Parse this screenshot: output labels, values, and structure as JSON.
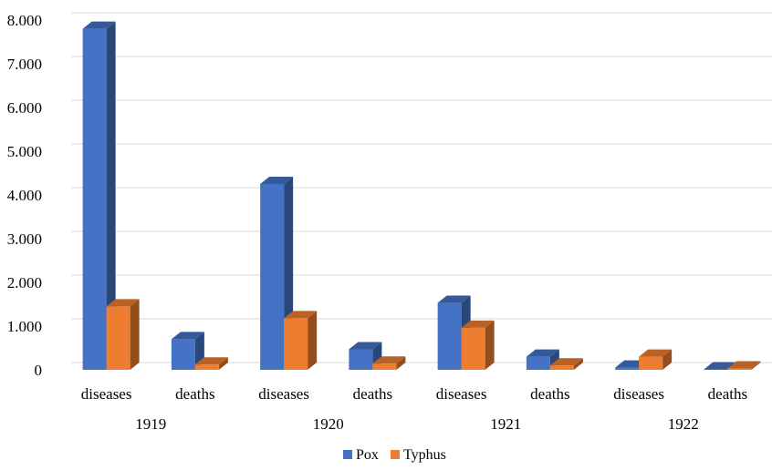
{
  "chart_data": {
    "type": "bar",
    "style": "3d-clustered-column",
    "groups": [
      "1919",
      "1920",
      "1921",
      "1922"
    ],
    "subcategories": [
      "diseases",
      "deaths"
    ],
    "categories": [
      "1919 diseases",
      "1919 deaths",
      "1920 diseases",
      "1920 deaths",
      "1921 diseases",
      "1921 deaths",
      "1922 diseases",
      "1922 deaths"
    ],
    "series": [
      {
        "name": "Pox",
        "color": "#4472c4",
        "values": [
          7800,
          700,
          4250,
          470,
          1530,
          300,
          50,
          10
        ]
      },
      {
        "name": "Typhus",
        "color": "#ed7d31",
        "values": [
          1450,
          120,
          1180,
          140,
          960,
          100,
          300,
          30
        ]
      }
    ],
    "ylim": [
      0,
      8000
    ],
    "yticks": [
      "0",
      "1.000",
      "2.000",
      "3.000",
      "4.000",
      "5.000",
      "6.000",
      "7.000",
      "8.000"
    ],
    "ytick_values": [
      0,
      1000,
      2000,
      3000,
      4000,
      5000,
      6000,
      7000,
      8000
    ],
    "grid": true,
    "legend": "bottom",
    "title": "",
    "xlabel": "",
    "ylabel": ""
  }
}
